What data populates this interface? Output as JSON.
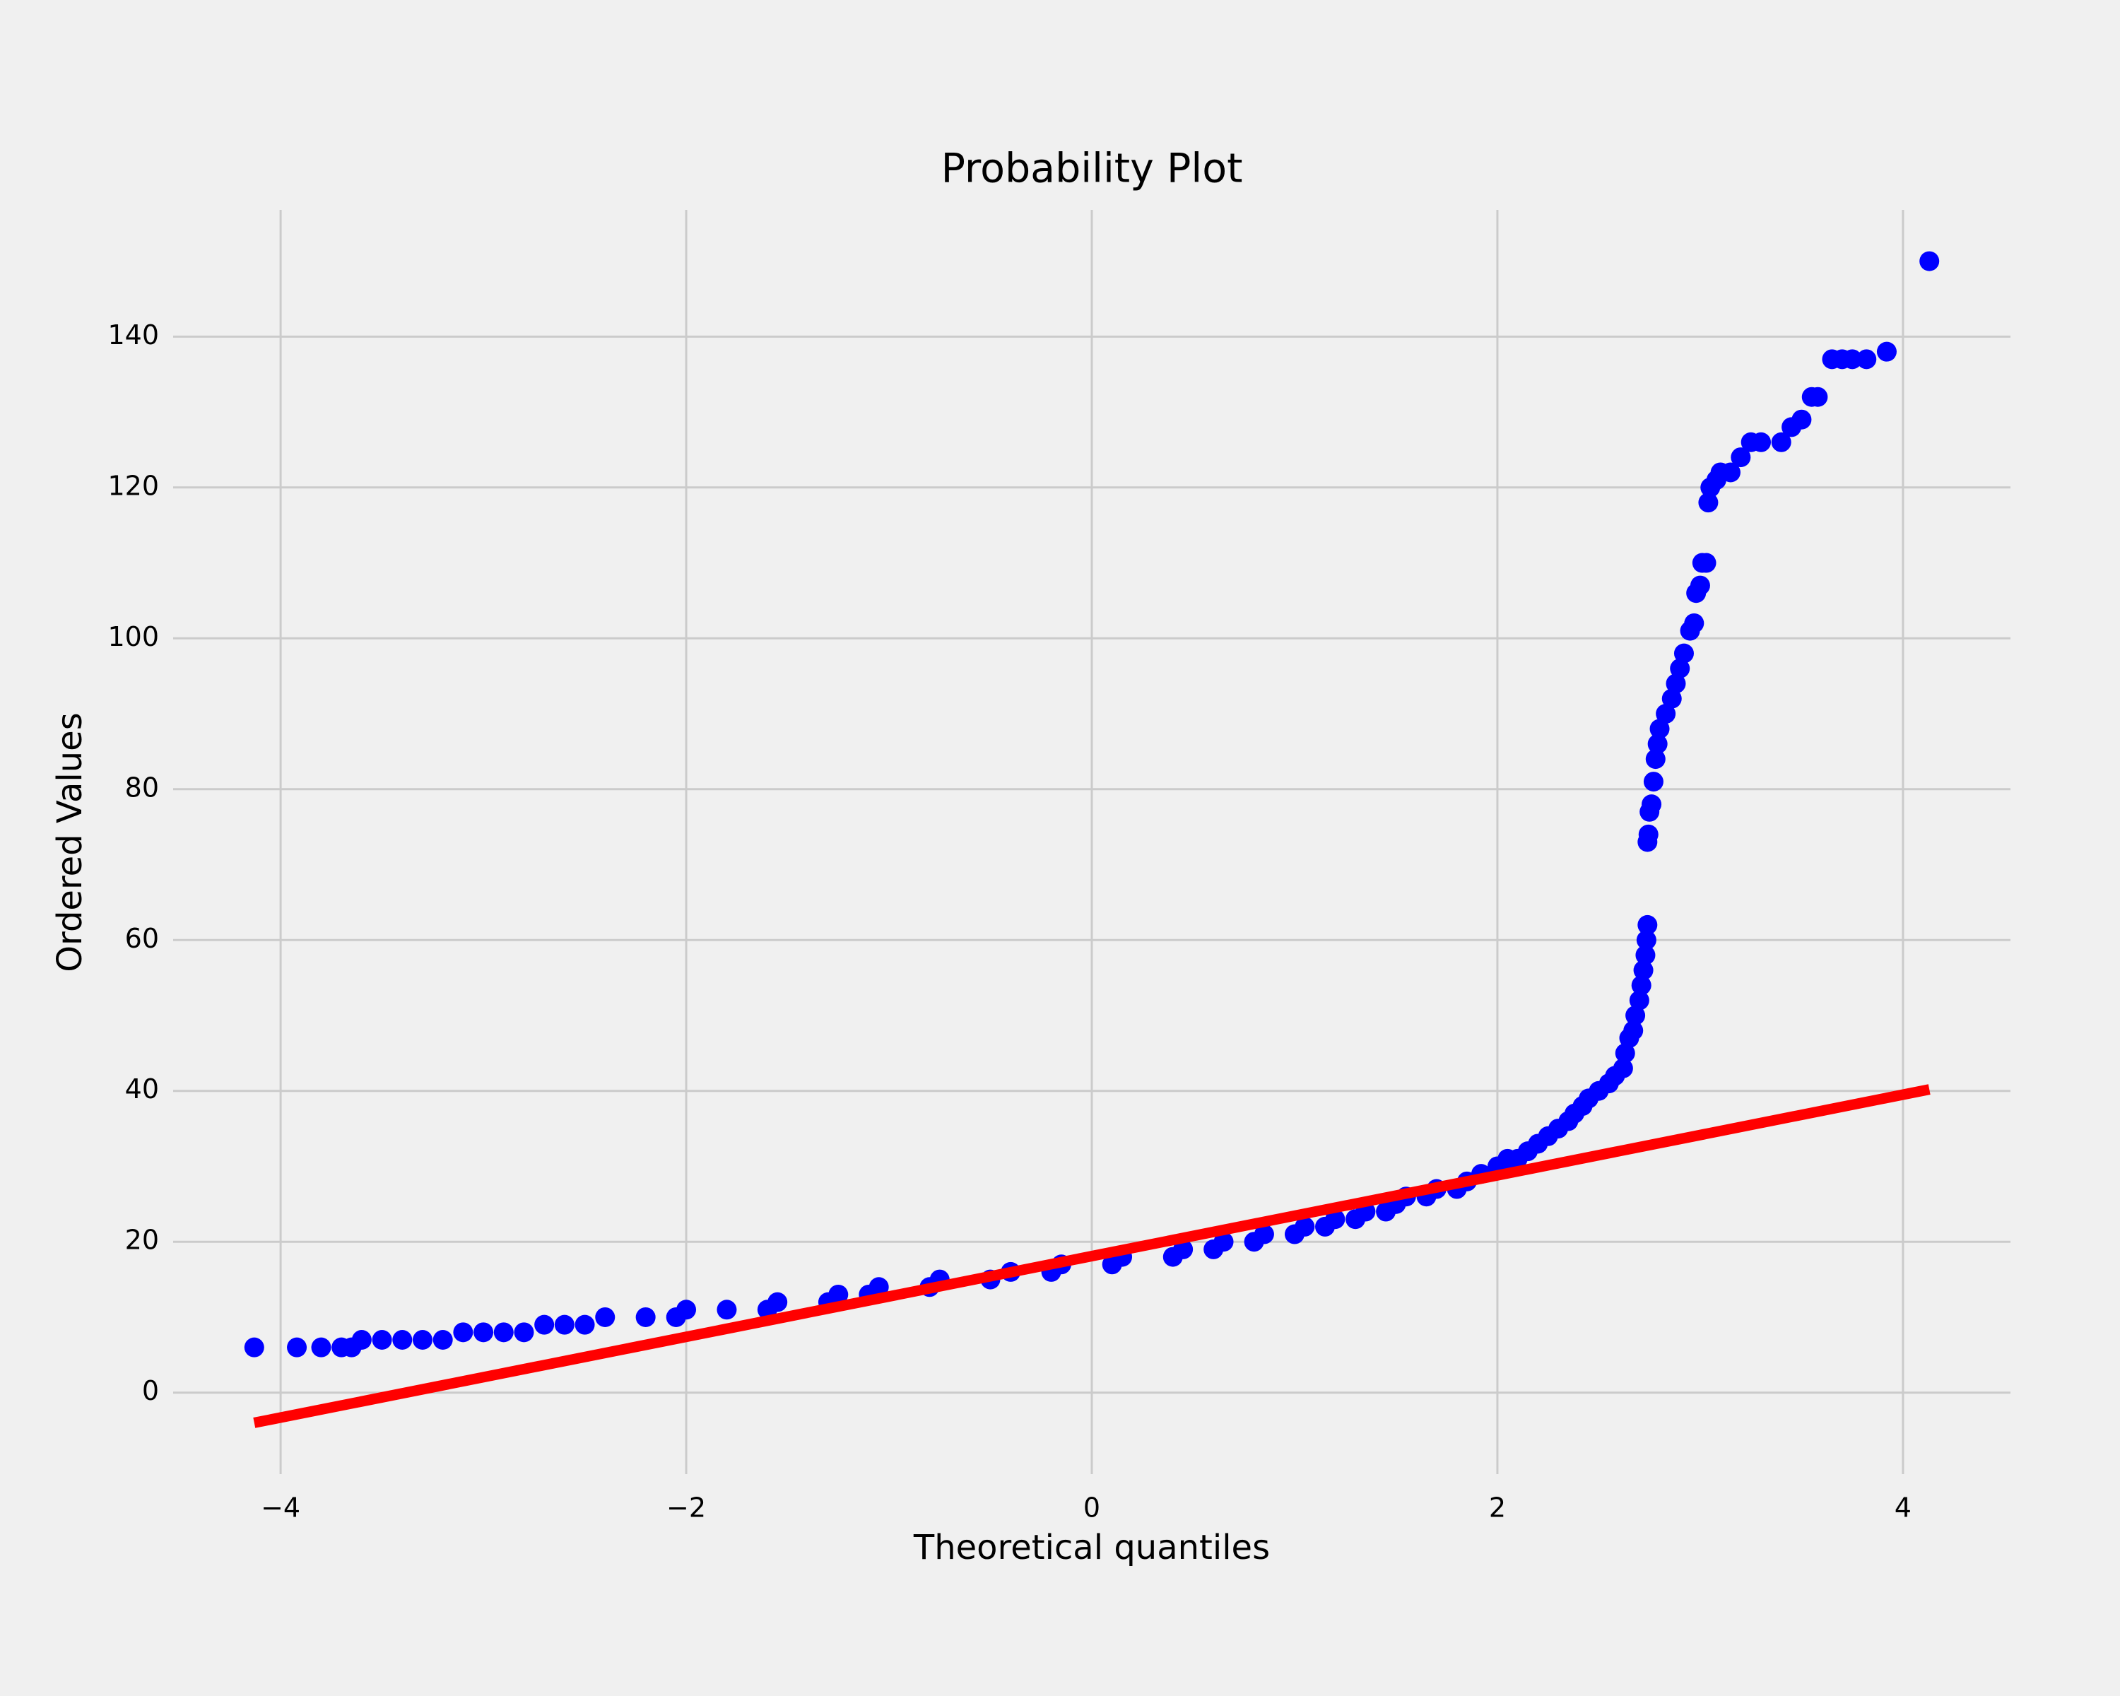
{
  "chart_data": {
    "type": "scatter",
    "title": "Probability Plot",
    "x_label": "Theoretical quantiles",
    "y_label": "Ordered Values",
    "xlim": [
      -4.53,
      4.53
    ],
    "ylim": [
      -10.8,
      156.8
    ],
    "xticks": [
      {
        "value": -4,
        "label": "−4"
      },
      {
        "value": -2,
        "label": "−2"
      },
      0,
      2,
      4
    ],
    "yticks": [
      0,
      20,
      40,
      60,
      80,
      100,
      120,
      140
    ],
    "grid": true,
    "background": "#f0f0f0",
    "series": [
      {
        "type": "scatter",
        "color": "#0000ff",
        "x": [
          -4.13,
          -3.92,
          -3.8,
          -3.7,
          -3.65,
          -3.6,
          -3.5,
          -3.4,
          -3.3,
          -3.2,
          -3.1,
          -3.0,
          -2.9,
          -2.8,
          -2.7,
          -2.6,
          -2.5,
          -2.4,
          -2.2,
          -2.05,
          -2.0,
          -1.8,
          -1.6,
          -1.55,
          -1.3,
          -1.25,
          -1.1,
          -1.05,
          -0.8,
          -0.75,
          -0.5,
          -0.4,
          -0.2,
          -0.15,
          0.1,
          0.15,
          0.4,
          0.45,
          0.6,
          0.65,
          0.8,
          0.85,
          1.0,
          1.05,
          1.15,
          1.2,
          1.3,
          1.35,
          1.45,
          1.5,
          1.55,
          1.65,
          1.7,
          1.8,
          1.85,
          1.92,
          2.0,
          2.05,
          2.1,
          2.15,
          2.2,
          2.25,
          2.3,
          2.35,
          2.38,
          2.42,
          2.45,
          2.5,
          2.55,
          2.58,
          2.62,
          2.63,
          2.65,
          2.67,
          2.68,
          2.7,
          2.71,
          2.72,
          2.73,
          2.735,
          2.74,
          2.74,
          2.745,
          2.75,
          2.76,
          2.77,
          2.78,
          2.79,
          2.8,
          2.83,
          2.86,
          2.88,
          2.9,
          2.92,
          2.95,
          2.97,
          2.98,
          3.0,
          3.01,
          3.03,
          3.04,
          3.05,
          3.08,
          3.1,
          3.15,
          3.2,
          3.25,
          3.3,
          3.4,
          3.45,
          3.5,
          3.55,
          3.58,
          3.65,
          3.7,
          3.75,
          3.82,
          3.92,
          4.13
        ],
        "values": [
          6,
          6,
          6,
          6,
          6,
          7,
          7,
          7,
          7,
          7,
          8,
          8,
          8,
          8,
          9,
          9,
          9,
          10,
          10,
          10,
          11,
          11,
          11,
          12,
          12,
          13,
          13,
          14,
          14,
          15,
          15,
          16,
          16,
          17,
          17,
          18,
          18,
          19,
          19,
          20,
          20,
          21,
          21,
          22,
          22,
          23,
          23,
          24,
          24,
          25,
          26,
          26,
          27,
          27,
          28,
          29,
          30,
          31,
          31,
          32,
          33,
          34,
          35,
          36,
          37,
          38,
          39,
          40,
          41,
          42,
          43,
          45,
          47,
          48,
          50,
          52,
          54,
          56,
          58,
          60,
          62,
          73,
          74,
          77,
          78,
          81,
          84,
          86,
          88,
          90,
          92,
          94,
          96,
          98,
          101,
          102,
          106,
          107,
          110,
          110,
          118,
          120,
          121,
          122,
          122,
          124,
          126,
          126,
          126,
          128,
          129,
          132,
          132,
          137,
          137,
          137,
          137,
          138,
          150
        ]
      },
      {
        "type": "line",
        "color": "#ff0000",
        "x": [
          -4.13,
          4.13
        ],
        "values": [
          -4.0,
          40.2
        ]
      }
    ]
  }
}
